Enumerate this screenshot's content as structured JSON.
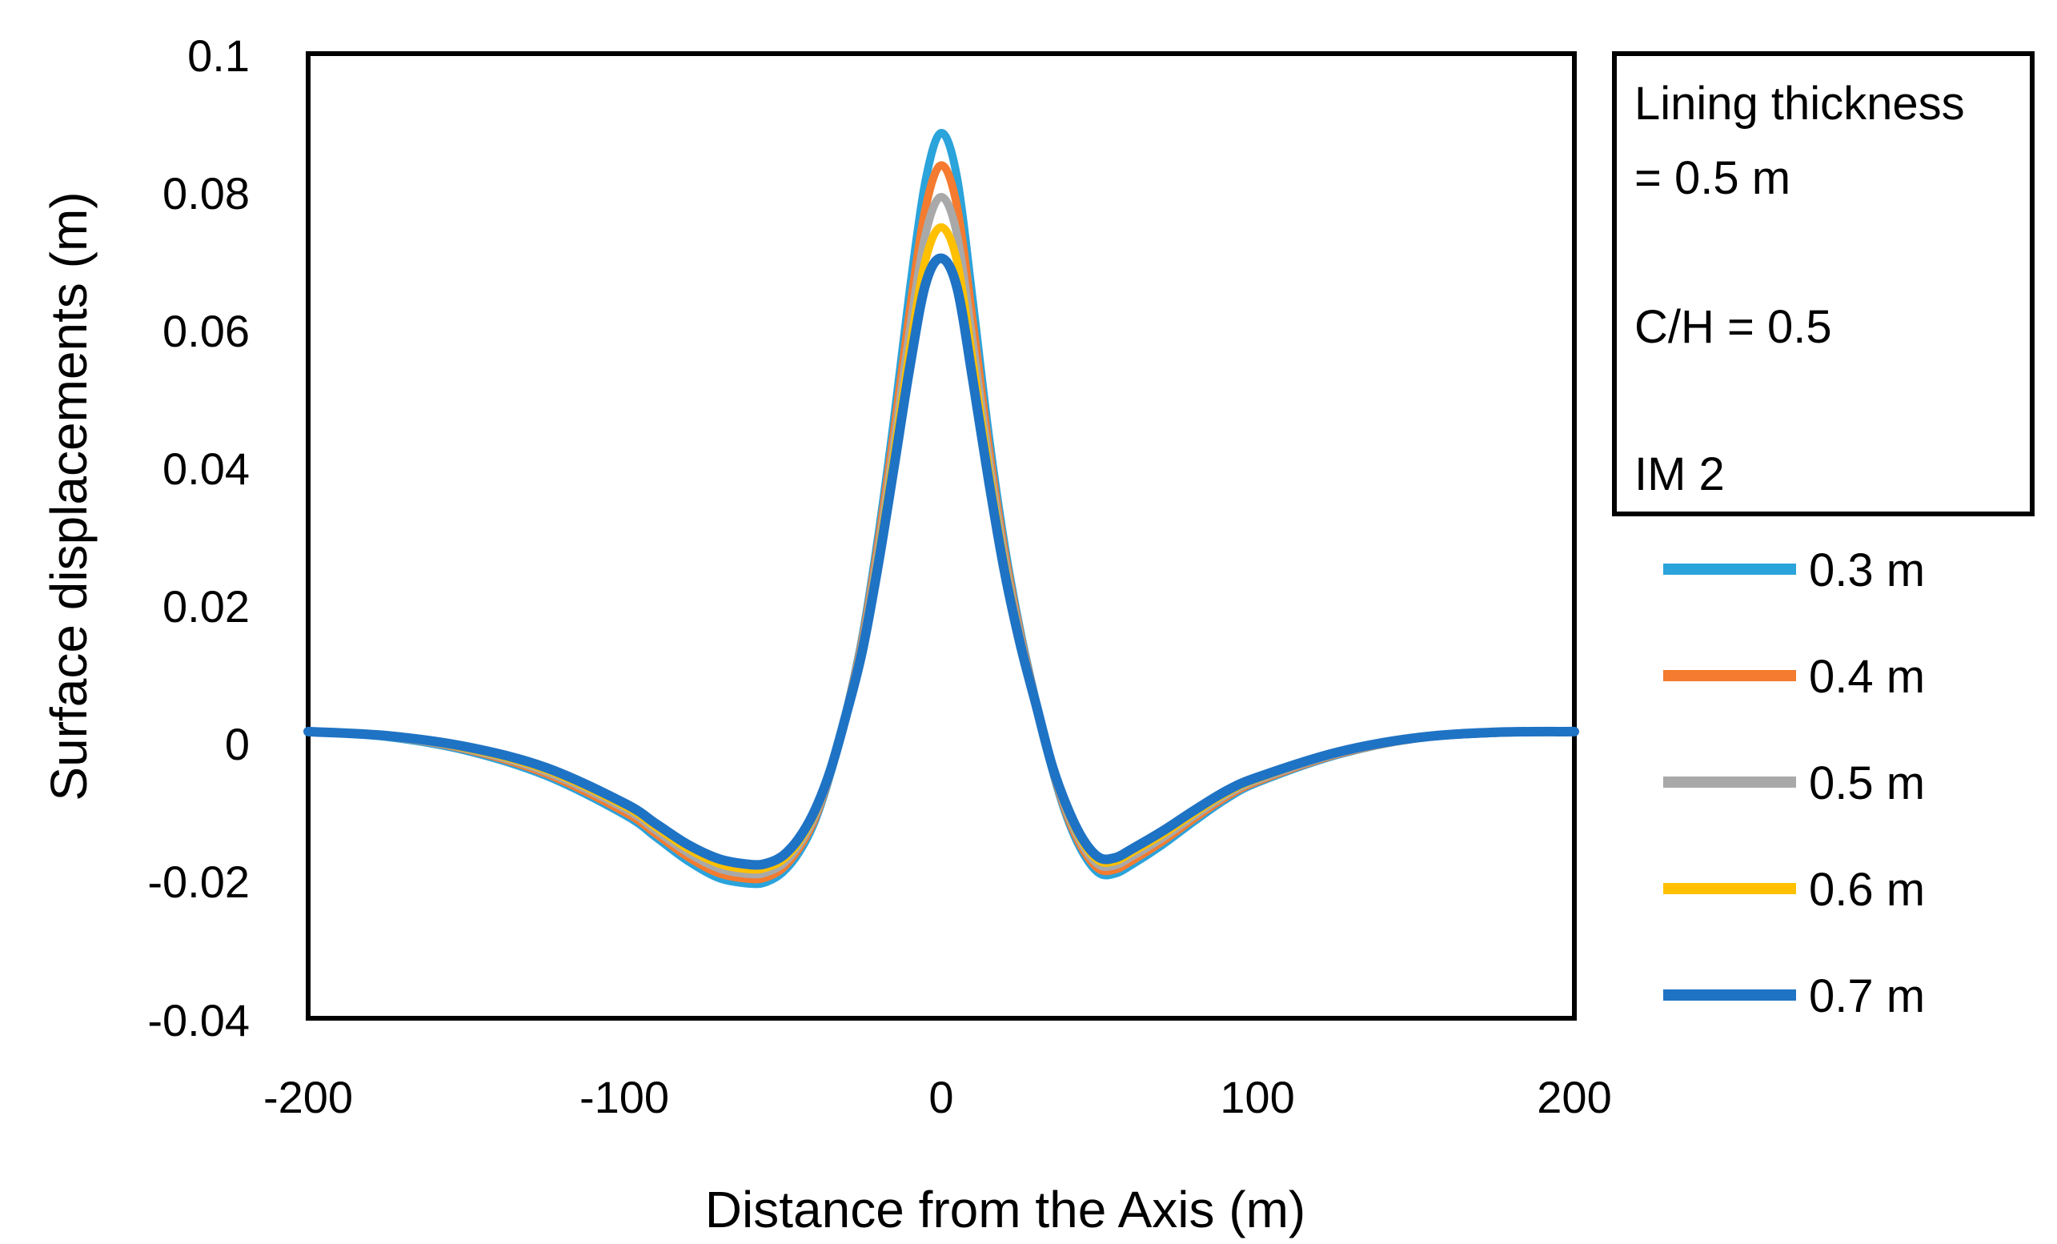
{
  "chart_data": {
    "type": "line",
    "title": "",
    "xlabel": "Distance from the Axis (m)",
    "ylabel": "Surface displacements (m)",
    "xlim": [
      -200,
      200
    ],
    "ylim": [
      -0.04,
      0.1
    ],
    "x_ticks": [
      -200,
      -100,
      0,
      100,
      200
    ],
    "x_tick_labels": [
      "-200",
      "-100",
      "0",
      "100",
      "200"
    ],
    "y_ticks": [
      -0.04,
      -0.02,
      0,
      0.02,
      0.04,
      0.06,
      0.08,
      0.1
    ],
    "y_tick_labels": [
      "-0.04",
      "-0.02",
      "0",
      "0.02",
      "0.04",
      "0.06",
      "0.08",
      "0.1"
    ],
    "grid": false,
    "legend_position": "right",
    "annotation_lines": [
      "Lining thickness",
      "= 0.5 m",
      "C/H = 0.5",
      "IM 2"
    ],
    "x": [
      -200,
      -175,
      -150,
      -125,
      -100,
      -90,
      -80,
      -70,
      -60,
      -55,
      -50,
      -45,
      -40,
      -35,
      -30,
      -25,
      -20,
      -15,
      -10,
      -5,
      0,
      5,
      10,
      15,
      20,
      25,
      30,
      35,
      40,
      45,
      50,
      55,
      60,
      70,
      80,
      90,
      100,
      125,
      150,
      175,
      200
    ],
    "series": [
      {
        "name": "0.3 m",
        "color": "#2BA3DB",
        "values": [
          0.0016,
          0.0008,
          -0.0012,
          -0.0048,
          -0.0105,
          -0.0138,
          -0.0172,
          -0.0197,
          -0.0205,
          -0.0202,
          -0.0188,
          -0.016,
          -0.0115,
          -0.0045,
          0.0045,
          0.0152,
          0.0298,
          0.0468,
          0.0655,
          0.0815,
          0.0885,
          0.082,
          0.064,
          0.0448,
          0.0288,
          0.0162,
          0.0058,
          -0.0038,
          -0.0112,
          -0.0162,
          -0.019,
          -0.019,
          -0.0178,
          -0.0148,
          -0.0114,
          -0.0082,
          -0.0058,
          -0.0018,
          0.0006,
          0.0014,
          0.0016
        ]
      },
      {
        "name": "0.4 m",
        "color": "#F47B2F",
        "values": [
          0.0016,
          0.0009,
          -0.001,
          -0.0045,
          -0.0101,
          -0.0133,
          -0.0166,
          -0.019,
          -0.0198,
          -0.0195,
          -0.0182,
          -0.0154,
          -0.0111,
          -0.0043,
          0.0044,
          0.0147,
          0.0287,
          0.045,
          0.0625,
          0.0775,
          0.0838,
          0.0778,
          0.061,
          0.043,
          0.0278,
          0.0157,
          0.0057,
          -0.0036,
          -0.0108,
          -0.0157,
          -0.0184,
          -0.0184,
          -0.0172,
          -0.0143,
          -0.011,
          -0.0079,
          -0.0056,
          -0.0017,
          0.0006,
          0.0014,
          0.0016
        ]
      },
      {
        "name": "0.5 m",
        "color": "#A9A9A9",
        "values": [
          0.0016,
          0.0009,
          -0.0009,
          -0.0042,
          -0.0096,
          -0.0128,
          -0.016,
          -0.0183,
          -0.0191,
          -0.0188,
          -0.0176,
          -0.0149,
          -0.0107,
          -0.0042,
          0.0043,
          0.0142,
          0.0276,
          0.0432,
          0.0597,
          0.0737,
          0.0792,
          0.0737,
          0.058,
          0.0413,
          0.0268,
          0.0152,
          0.0056,
          -0.0035,
          -0.0104,
          -0.0152,
          -0.0178,
          -0.0178,
          -0.0166,
          -0.0138,
          -0.0106,
          -0.0076,
          -0.0054,
          -0.0016,
          0.0006,
          0.0014,
          0.0016
        ]
      },
      {
        "name": "0.6 m",
        "color": "#FFC000",
        "values": [
          0.0016,
          0.001,
          -0.0008,
          -0.0039,
          -0.0092,
          -0.0123,
          -0.0154,
          -0.0176,
          -0.0184,
          -0.0181,
          -0.017,
          -0.0144,
          -0.0103,
          -0.0041,
          0.0042,
          0.0137,
          0.0266,
          0.0415,
          0.0569,
          0.07,
          0.0748,
          0.0698,
          0.0552,
          0.0396,
          0.0258,
          0.0147,
          0.0055,
          -0.0034,
          -0.01,
          -0.0147,
          -0.0172,
          -0.0172,
          -0.016,
          -0.0133,
          -0.0102,
          -0.0073,
          -0.0052,
          -0.0015,
          0.0007,
          0.0015,
          0.0016
        ]
      },
      {
        "name": "0.7 m",
        "color": "#1F73C4",
        "values": [
          0.0016,
          0.001,
          -0.0006,
          -0.0036,
          -0.0088,
          -0.0118,
          -0.0148,
          -0.0169,
          -0.0177,
          -0.0175,
          -0.0164,
          -0.0139,
          -0.0099,
          -0.004,
          0.0041,
          0.0132,
          0.0256,
          0.0398,
          0.0543,
          0.0665,
          0.0703,
          0.066,
          0.0525,
          0.038,
          0.0248,
          0.0142,
          0.0054,
          -0.0033,
          -0.0096,
          -0.0142,
          -0.0167,
          -0.0167,
          -0.0155,
          -0.0128,
          -0.0098,
          -0.007,
          -0.005,
          -0.0014,
          0.0007,
          0.0015,
          0.0016
        ]
      }
    ]
  }
}
